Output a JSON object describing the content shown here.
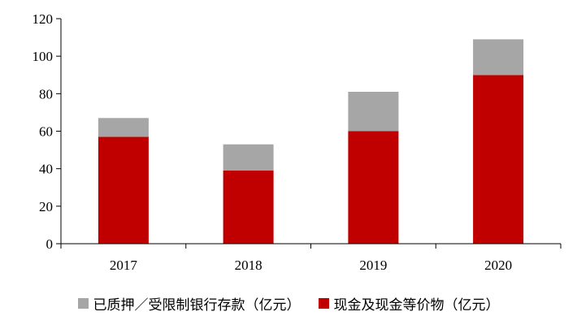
{
  "chart_data": {
    "type": "bar",
    "stacked": true,
    "categories": [
      "2017",
      "2018",
      "2019",
      "2020"
    ],
    "series": [
      {
        "name": "现金及现金等价物（亿元）",
        "color": "#c00000",
        "values": [
          57,
          39,
          60,
          90
        ]
      },
      {
        "name": "已质押／受限制银行存款（亿元）",
        "color": "#a6a6a6",
        "values": [
          10,
          14,
          21,
          19
        ]
      }
    ],
    "ylim": [
      0,
      120
    ],
    "yticks": [
      "0",
      "20",
      "40",
      "60",
      "80",
      "100",
      "120"
    ],
    "grid": false,
    "legend": {
      "placement": "bottom",
      "items": [
        {
          "label": "已质押／受限制银行存款（亿元）",
          "color": "#a6a6a6"
        },
        {
          "label": "现金及现金等价物（亿元）",
          "color": "#c00000"
        }
      ]
    }
  }
}
